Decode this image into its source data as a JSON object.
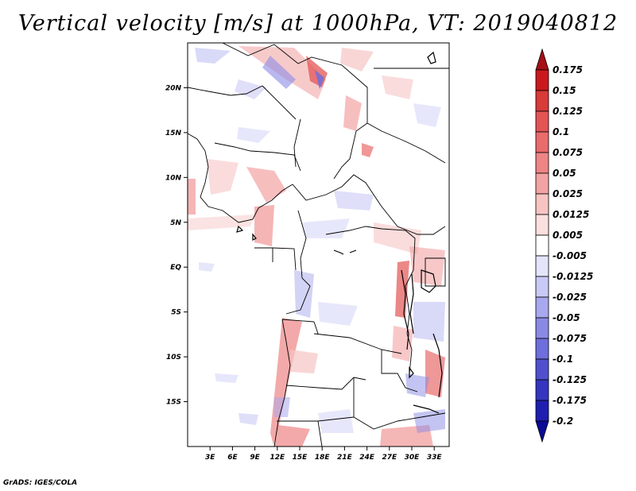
{
  "chart_data": {
    "type": "heatmap",
    "title": "Vertical velocity [m/s] at 1000hPa, VT: 2019040812",
    "lon_range": [
      0,
      35
    ],
    "lat_range": [
      -20,
      25
    ],
    "x_ticks": [
      "3E",
      "6E",
      "9E",
      "12E",
      "15E",
      "18E",
      "21E",
      "24E",
      "27E",
      "30E",
      "33E"
    ],
    "x_tick_values": [
      3,
      6,
      9,
      12,
      15,
      18,
      21,
      24,
      27,
      30,
      33
    ],
    "y_ticks": [
      "20N",
      "15N",
      "10N",
      "5N",
      "EQ",
      "5S",
      "10S",
      "15S"
    ],
    "y_tick_values": [
      20,
      15,
      10,
      5,
      0,
      -5,
      -10,
      -15
    ],
    "colorbar": {
      "labels": [
        "0.175",
        "0.15",
        "0.125",
        "0.1",
        "0.075",
        "0.05",
        "0.025",
        "0.0125",
        "0.005",
        "-0.005",
        "-0.0125",
        "-0.025",
        "-0.05",
        "-0.075",
        "-0.1",
        "-0.125",
        "-0.175",
        "-0.2"
      ],
      "colors": [
        "#a50f15",
        "#cb181d",
        "#d93a3a",
        "#e35454",
        "#ea6b6b",
        "#ee8585",
        "#f3a3a3",
        "#f7c4c4",
        "#fbe0e0",
        "#ffffff",
        "#e4e4fb",
        "#c9c9f5",
        "#a8a8ee",
        "#8a8ae6",
        "#6e6edc",
        "#5050cf",
        "#3535c0",
        "#1e1eb0",
        "#0a0a96"
      ]
    },
    "footer": "GrADS: IGES/COLA"
  }
}
